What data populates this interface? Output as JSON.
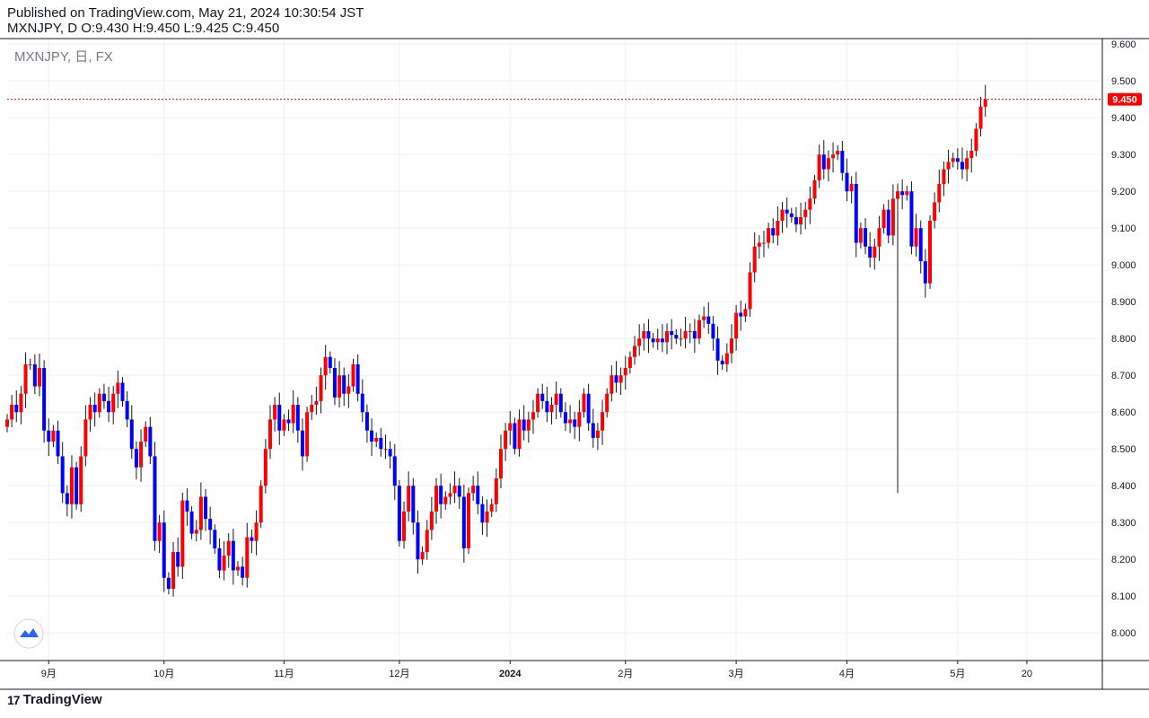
{
  "header": {
    "published_line": "Published on TradingView.com, May 21, 2024 10:30:54 JST",
    "ohlc_line": "MXNJPY, D O:9.430 H:9.450 L:9.425 C:9.450"
  },
  "footer": {
    "brand": "TradingView",
    "brand_mark": "17"
  },
  "colors": {
    "up": "#ff0000",
    "down": "#0000ff",
    "wick": "#131722",
    "grid": "#eef0f4",
    "axis": "#131722",
    "price_line": "#ff0000"
  },
  "chart_data": {
    "type": "candlestick",
    "title": "MXNJPY, 日, FX",
    "y_axis_position": "right",
    "ylim": [
      7.925,
      9.615
    ],
    "y_ticks": [
      "8.000",
      "8.100",
      "8.200",
      "8.300",
      "8.400",
      "8.500",
      "8.600",
      "8.700",
      "8.800",
      "8.900",
      "9.000",
      "9.100",
      "9.200",
      "9.300",
      "9.400",
      "9.500",
      "9.600"
    ],
    "x_ticks": [
      {
        "label": "9月",
        "index": 9,
        "bold": false
      },
      {
        "label": "10月",
        "index": 34,
        "bold": false
      },
      {
        "label": "11月",
        "index": 60,
        "bold": false
      },
      {
        "label": "12月",
        "index": 85,
        "bold": false
      },
      {
        "label": "2024",
        "index": 109,
        "bold": true
      },
      {
        "label": "2月",
        "index": 134,
        "bold": false
      },
      {
        "label": "3月",
        "index": 158,
        "bold": false
      },
      {
        "label": "4月",
        "index": 182,
        "bold": false
      },
      {
        "label": "5月",
        "index": 206,
        "bold": false
      },
      {
        "label": "20",
        "index": 221,
        "bold": false
      }
    ],
    "last_price": "9.450",
    "closes": [
      8.58,
      8.62,
      8.6,
      8.65,
      8.73,
      8.73,
      8.67,
      8.72,
      8.55,
      8.52,
      8.55,
      8.48,
      8.38,
      8.35,
      8.45,
      8.35,
      8.48,
      8.58,
      8.62,
      8.6,
      8.65,
      8.63,
      8.6,
      8.65,
      8.68,
      8.63,
      8.58,
      8.5,
      8.45,
      8.52,
      8.56,
      8.48,
      8.25,
      8.3,
      8.15,
      8.12,
      8.22,
      8.18,
      8.36,
      8.33,
      8.27,
      8.28,
      8.37,
      8.31,
      8.28,
      8.23,
      8.17,
      8.21,
      8.25,
      8.17,
      8.18,
      8.15,
      8.26,
      8.25,
      8.3,
      8.4,
      8.5,
      8.58,
      8.62,
      8.55,
      8.58,
      8.57,
      8.62,
      8.55,
      8.48,
      8.6,
      8.62,
      8.63,
      8.7,
      8.75,
      8.72,
      8.64,
      8.7,
      8.65,
      8.67,
      8.73,
      8.65,
      8.6,
      8.55,
      8.52,
      8.53,
      8.5,
      8.5,
      8.48,
      8.4,
      8.25,
      8.33,
      8.4,
      8.3,
      8.2,
      8.22,
      8.28,
      8.33,
      8.4,
      8.35,
      8.37,
      8.38,
      8.4,
      8.37,
      8.23,
      8.38,
      8.4,
      8.35,
      8.3,
      8.33,
      8.35,
      8.42,
      8.5,
      8.55,
      8.57,
      8.5,
      8.58,
      8.55,
      8.58,
      8.6,
      8.65,
      8.63,
      8.6,
      8.62,
      8.65,
      8.6,
      8.57,
      8.58,
      8.56,
      8.6,
      8.65,
      8.57,
      8.53,
      8.55,
      8.6,
      8.65,
      8.7,
      8.68,
      8.7,
      8.72,
      8.75,
      8.78,
      8.8,
      8.82,
      8.8,
      8.79,
      8.8,
      8.79,
      8.82,
      8.81,
      8.8,
      8.8,
      8.82,
      8.82,
      8.8,
      8.85,
      8.86,
      8.84,
      8.8,
      8.74,
      8.73,
      8.76,
      8.8,
      8.87,
      8.86,
      8.88,
      8.98,
      9.05,
      9.06,
      9.06,
      9.1,
      9.08,
      9.12,
      9.15,
      9.14,
      9.13,
      9.11,
      9.13,
      9.15,
      9.18,
      9.23,
      9.3,
      9.26,
      9.29,
      9.3,
      9.31,
      9.25,
      9.2,
      9.22,
      9.06,
      9.1,
      9.05,
      9.02,
      9.05,
      9.1,
      9.15,
      9.08,
      9.18,
      9.2,
      9.19,
      9.2,
      9.05,
      9.1,
      9.01,
      8.95,
      9.12,
      9.17,
      9.22,
      9.26,
      9.28,
      9.29,
      9.28,
      9.26,
      9.29,
      9.31,
      9.37,
      9.43,
      9.45
    ],
    "spikes": [
      {
        "index": 193,
        "low": 8.38
      }
    ]
  }
}
